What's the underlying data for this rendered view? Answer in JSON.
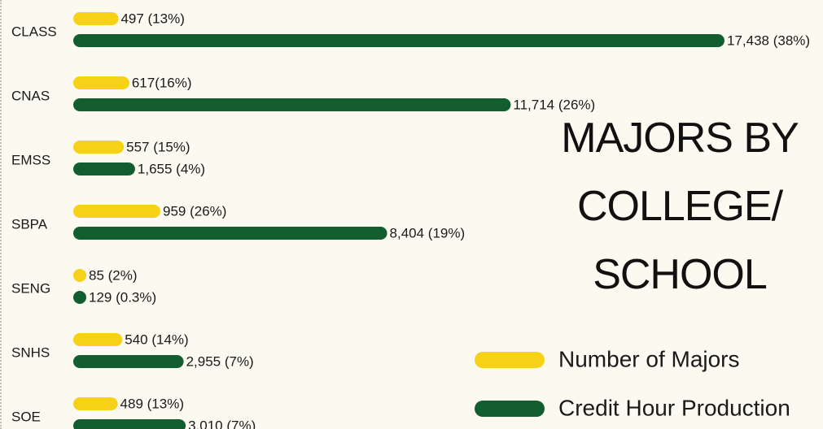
{
  "chart_data": {
    "type": "bar",
    "orientation": "horizontal",
    "title": "MAJORS BY COLLEGE/ SCHOOL",
    "categories": [
      "CLASS",
      "CNAS",
      "EMSS",
      "SBPA",
      "SENG",
      "SNHS",
      "SOE"
    ],
    "series": [
      {
        "name": "Number of Majors",
        "color": "#f7d117",
        "values": [
          497,
          617,
          557,
          959,
          85,
          540,
          489
        ],
        "value_labels": [
          "497 (13%)",
          "617(16%)",
          "557 (15%)",
          "959 (26%)",
          "85 (2%)",
          "540 (14%)",
          "489 (13%)"
        ]
      },
      {
        "name": "Credit Hour Production",
        "color": "#135e2f",
        "values": [
          17438,
          11714,
          1655,
          8404,
          129,
          2955,
          3010
        ],
        "value_labels": [
          "17,438 (38%)",
          "11,714 (26%)",
          "1,655 (4%)",
          "8,404 (19%)",
          "129 (0.3%)",
          "2,955 (7%)",
          "3,010 (7%)"
        ]
      }
    ]
  }
}
